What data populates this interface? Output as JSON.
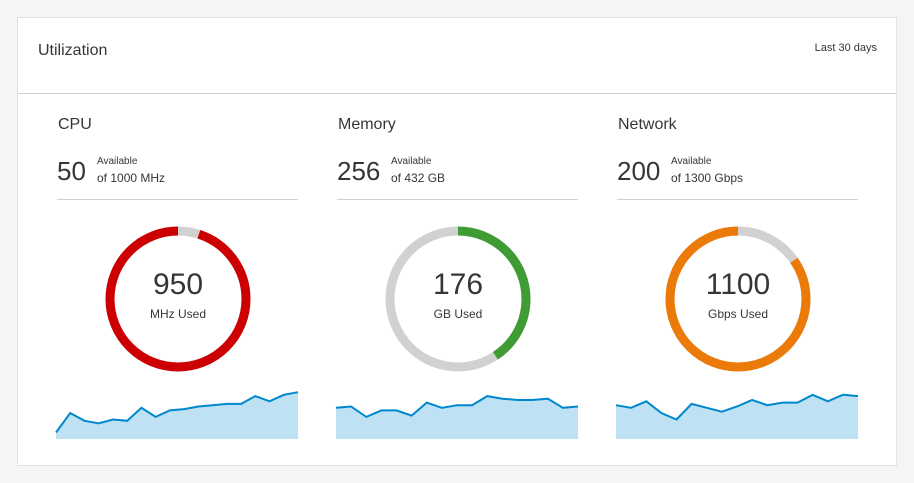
{
  "header": {
    "title": "Utilization",
    "range": "Last 30 days"
  },
  "colors": {
    "cpu": "#cc0000",
    "memory": "#3f9c35",
    "network": "#ec7a08",
    "track": "#d1d1d1",
    "sparkline_stroke": "#0088ce",
    "sparkline_fill": "#bee1f4"
  },
  "panels": [
    {
      "title": "CPU",
      "available": "50",
      "available_label": "Available",
      "of_total": "of 1000 MHz",
      "used": "950",
      "used_label": "MHz Used",
      "used_fraction": 0.95,
      "color": "#cc0000",
      "sparkline": [
        10,
        40,
        28,
        24,
        30,
        28,
        48,
        34,
        44,
        46,
        50,
        52,
        54,
        54,
        66,
        58,
        68,
        72
      ]
    },
    {
      "title": "Memory",
      "available": "256",
      "available_label": "Available",
      "of_total": "of 432 GB",
      "used": "176",
      "used_label": "GB Used",
      "used_fraction": 0.407,
      "color": "#3f9c35",
      "sparkline": [
        48,
        50,
        34,
        44,
        44,
        36,
        56,
        48,
        52,
        52,
        66,
        62,
        60,
        60,
        62,
        48,
        50
      ]
    },
    {
      "title": "Network",
      "available": "200",
      "available_label": "Available",
      "of_total": "of 1300 Gbps",
      "used": "1100",
      "used_label": "Gbps Used",
      "used_fraction": 0.846,
      "color": "#ec7a08",
      "sparkline": [
        52,
        48,
        58,
        40,
        30,
        54,
        48,
        42,
        50,
        60,
        52,
        56,
        56,
        68,
        58,
        68,
        66
      ]
    }
  ]
}
